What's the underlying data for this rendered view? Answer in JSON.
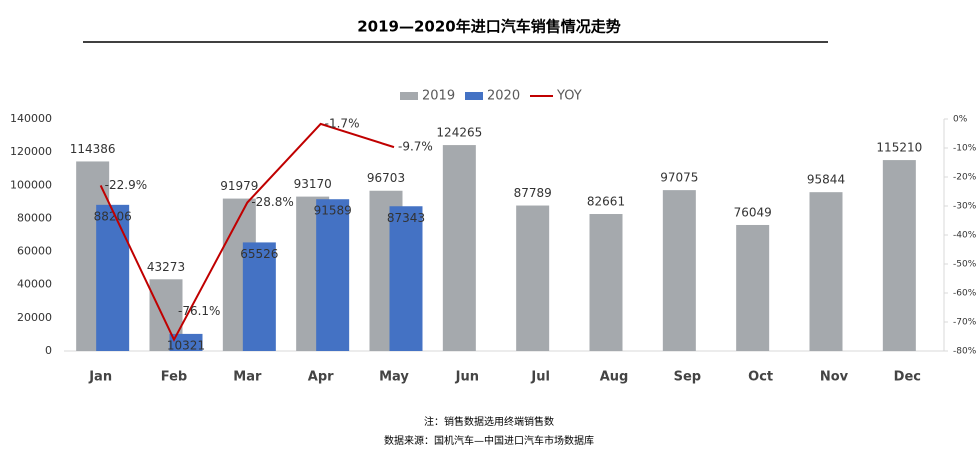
{
  "chart_data": {
    "type": "bar",
    "title": "2019—2020年进口汽车销售情况走势",
    "categories": [
      "Jan",
      "Feb",
      "Mar",
      "Apr",
      "May",
      "Jun",
      "Jul",
      "Aug",
      "Sep",
      "Oct",
      "Nov",
      "Dec"
    ],
    "series": [
      {
        "name": "2019",
        "color": "#a5a9ad",
        "values": [
          114386,
          43273,
          91979,
          93170,
          96703,
          124265,
          87789,
          82661,
          97075,
          76049,
          95844,
          115210
        ]
      },
      {
        "name": "2020",
        "color": "#4472c4",
        "values": [
          88206,
          10321,
          65526,
          91589,
          87343,
          null,
          null,
          null,
          null,
          null,
          null,
          null
        ]
      },
      {
        "name": "YOY",
        "color": "#c00000",
        "type": "line",
        "axis": "y2",
        "values": [
          -22.9,
          -76.1,
          -28.8,
          -1.7,
          -9.7,
          null,
          null,
          null,
          null,
          null,
          null,
          null
        ],
        "value_labels": [
          "-22.9%",
          "-76.1%",
          "-28.8%",
          "-1.7%",
          "-9.7%",
          null,
          null,
          null,
          null,
          null,
          null,
          null
        ]
      }
    ],
    "ylim": [
      0,
      140000
    ],
    "yticks": [
      0,
      20000,
      40000,
      60000,
      80000,
      100000,
      120000,
      140000
    ],
    "y2lim": [
      -80,
      0
    ],
    "y2ticks": [
      {
        "value": 0,
        "label": "0%"
      },
      {
        "value": -10,
        "label": "-10%"
      },
      {
        "value": -20,
        "label": "-20%"
      },
      {
        "value": -30,
        "label": "-30%"
      },
      {
        "value": -40,
        "label": "-40%"
      },
      {
        "value": -50,
        "label": "-50%"
      },
      {
        "value": -60,
        "label": "-60%"
      },
      {
        "value": -70,
        "label": "-70%"
      },
      {
        "value": -80,
        "label": "-80%"
      }
    ],
    "legend": "top",
    "notes": [
      "注：销售数据选用终端销售数",
      "数据来源：国机汽车—中国进口汽车市场数据库"
    ]
  }
}
